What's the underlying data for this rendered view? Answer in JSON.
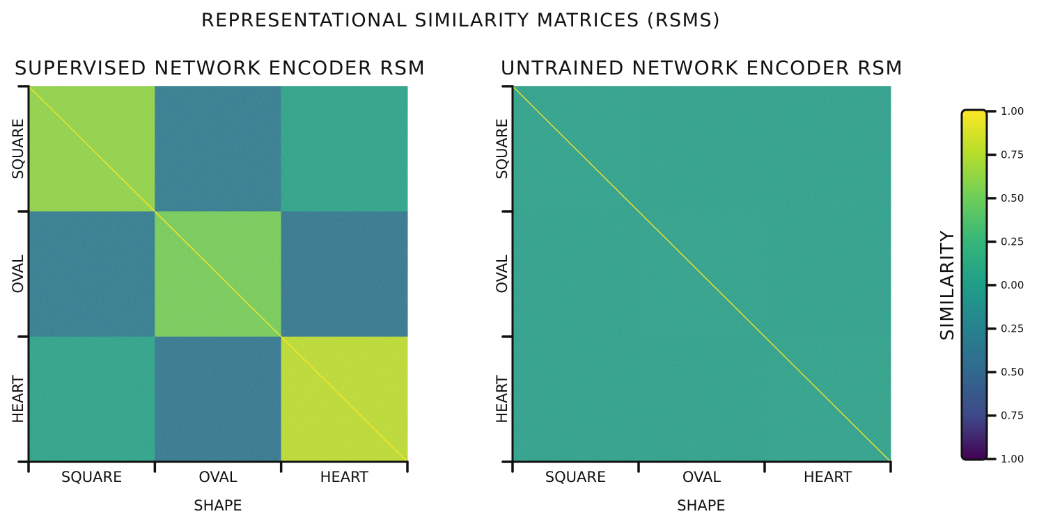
{
  "figure": {
    "suptitle": "REPRESENTATIONAL SIMILARITY MATRICES (RSMS)"
  },
  "chart_data": [
    {
      "type": "heatmap",
      "title": "SUPERVISED NETWORK ENCODER RSM",
      "xlabel": "SHAPE",
      "ylabel": "",
      "categories": [
        "SQUARE",
        "OVAL",
        "HEART"
      ],
      "block_mean_similarity": [
        [
          0.62,
          -0.33,
          0.05
        ],
        [
          -0.33,
          0.52,
          -0.38
        ],
        [
          0.05,
          -0.38,
          0.78
        ]
      ],
      "diagonal": 1.0,
      "vmin": -1.0,
      "vmax": 1.0,
      "colormap": "viridis"
    },
    {
      "type": "heatmap",
      "title": "UNTRAINED NETWORK ENCODER RSM",
      "xlabel": "SHAPE",
      "ylabel": "",
      "categories": [
        "SQUARE",
        "OVAL",
        "HEART"
      ],
      "block_mean_similarity": [
        [
          0.03,
          0.02,
          0.02
        ],
        [
          0.02,
          0.03,
          0.02
        ],
        [
          0.02,
          0.02,
          0.03
        ]
      ],
      "diagonal": 1.0,
      "vmin": -1.0,
      "vmax": 1.0,
      "colormap": "viridis"
    }
  ],
  "colorbar": {
    "label": "SIMILARITY",
    "ticks": [
      "1.00",
      "0.75",
      "0.50",
      "0.25",
      "0.00",
      "0.25",
      "0.50",
      "0.75",
      "1.00"
    ],
    "colors": [
      "#fde725",
      "#5ec962",
      "#21918c",
      "#3b528b",
      "#440154"
    ]
  }
}
